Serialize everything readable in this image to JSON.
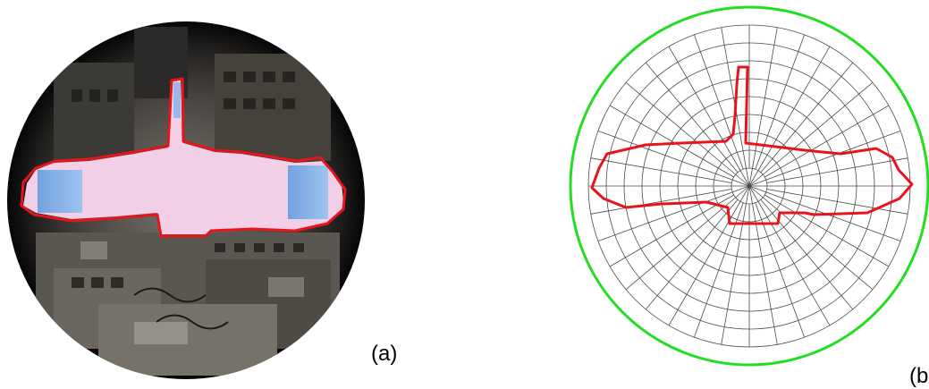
{
  "panels": [
    {
      "id": "a",
      "label": "(a)",
      "kind": "fisheye-photo-with-sky-outline"
    },
    {
      "id": "b",
      "label": "(b",
      "kind": "polar-grid-with-sky-outline"
    }
  ],
  "colors": {
    "outline": "#e8141c",
    "horizon_circle": "#22dd22",
    "grid": "#4a4a4a",
    "sky_fill": "#f4cfe6",
    "background": "#ffffff"
  }
}
